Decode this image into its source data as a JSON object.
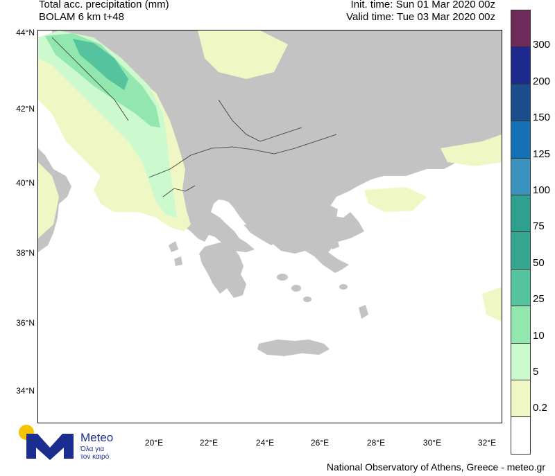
{
  "header": {
    "title": "Total acc. precipitation (mm)",
    "subtitle": "BOLAM 6 km t+48",
    "init_time": "Init. time: Sun 01 Mar 2020 00z",
    "valid_time": "Valid time: Tue 03 Mar 2020 00z"
  },
  "axes": {
    "lat_labels": [
      "44°N",
      "42°N",
      "40°N",
      "38°N",
      "36°N",
      "34°N"
    ],
    "lon_labels": [
      "20°E",
      "22°E",
      "24°E",
      "26°E",
      "28°E",
      "30°E",
      "32°E"
    ]
  },
  "colorbar": {
    "labels": [
      "300",
      "200",
      "150",
      "125",
      "100",
      "75",
      "50",
      "25",
      "10",
      "5",
      "0.2"
    ],
    "colors": [
      "#6e2a5a",
      "#1f2a8e",
      "#1b4c8c",
      "#1670b8",
      "#3b92bf",
      "#2da08f",
      "#37a690",
      "#55c39d",
      "#91e7ae",
      "#cdf9cf",
      "#eff8c4",
      "#ffffff"
    ]
  },
  "colors": {
    "land": "#c3c3c3",
    "sea": "#ffffff",
    "precip_light": "#eff8c4",
    "precip_medium": "#cdf9cf",
    "precip_strong": "#91e7ae",
    "precip_heavy": "#55c39d"
  },
  "logo": {
    "name": "Meteo",
    "tagline_1": "Όλα για",
    "tagline_2": "τον καιρό"
  },
  "footer": {
    "credit": "National Observatory of Athens, Greece - meteo.gr"
  }
}
